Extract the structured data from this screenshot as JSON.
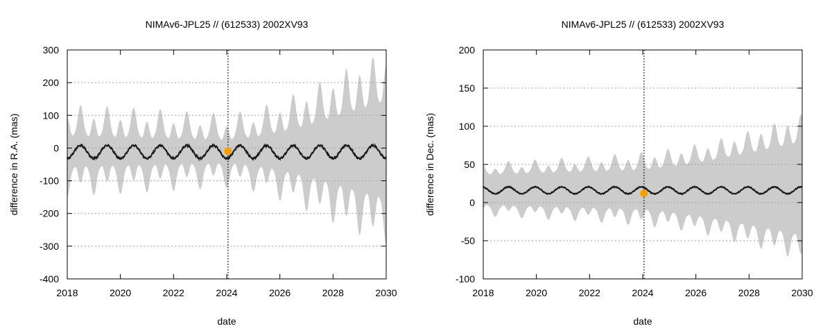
{
  "chart_data": [
    {
      "type": "area",
      "title": "NIMAv6-JPL25 // (612533) 2002XV93",
      "xlabel": "date",
      "ylabel": "difference in R.A. (mas)",
      "xlim": [
        2018,
        2030
      ],
      "ylim": [
        -400,
        300
      ],
      "x_ticks": [
        2018,
        2020,
        2022,
        2024,
        2026,
        2028,
        2030
      ],
      "y_ticks": [
        300,
        200,
        100,
        0,
        -100,
        -200,
        -300,
        -400
      ],
      "grid": "dotted-horizontal",
      "reference_line_x": 2024.05,
      "marker": {
        "x": 2024.05,
        "y": -10,
        "color": "#f5a000"
      },
      "mean_curve": {
        "center": -12,
        "amplitude": 20,
        "period_years": 1.0,
        "phase_year": 2018.25,
        "color": "#1a1a1a"
      },
      "uncertainty_band": {
        "color": "#cccccc",
        "years": [
          2018,
          2019,
          2020,
          2021,
          2022,
          2023,
          2024,
          2025,
          2026,
          2027,
          2028,
          2029,
          2030
        ],
        "peak_half_width": [
          125,
          122,
          118,
          113,
          108,
          102,
          98,
          110,
          140,
          175,
          215,
          255,
          285
        ],
        "trough_half_width": [
          55,
          52,
          50,
          48,
          46,
          44,
          42,
          50,
          65,
          85,
          110,
          135,
          160
        ]
      }
    },
    {
      "type": "area",
      "title": "NIMAv6-JPL25 // (612533) 2002XV93",
      "xlabel": "date",
      "ylabel": "difference in Dec. (mas)",
      "xlim": [
        2018,
        2030
      ],
      "ylim": [
        -100,
        200
      ],
      "x_ticks": [
        2018,
        2020,
        2022,
        2024,
        2026,
        2028,
        2030
      ],
      "y_ticks": [
        200,
        150,
        100,
        50,
        0,
        -50,
        -100
      ],
      "grid": "dotted-horizontal",
      "reference_line_x": 2024.05,
      "marker": {
        "x": 2024.05,
        "y": 12,
        "color": "#f5a000"
      },
      "mean_curve": {
        "center": 16,
        "amplitude": 4.5,
        "period_years": 1.0,
        "phase_year": 2018.7,
        "color": "#1a1a1a"
      },
      "uncertainty_band": {
        "color": "#cccccc",
        "years": [
          2018,
          2019,
          2020,
          2021,
          2022,
          2023,
          2024,
          2025,
          2026,
          2027,
          2028,
          2029,
          2030
        ],
        "peak_half_width": [
          32,
          34,
          36,
          38,
          40,
          43,
          46,
          50,
          56,
          64,
          74,
          84,
          96
        ],
        "trough_half_width": [
          22,
          23,
          24,
          25,
          26,
          27,
          28,
          32,
          37,
          43,
          50,
          57,
          65
        ]
      }
    }
  ]
}
